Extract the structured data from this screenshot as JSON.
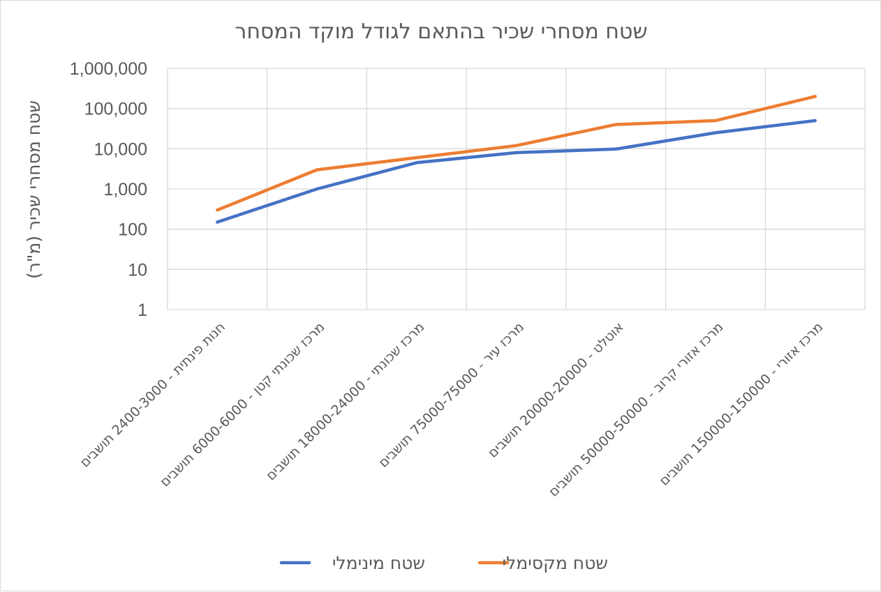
{
  "chart_data": {
    "type": "line",
    "title": "שטח מסחרי שכיר בהתאם לגודל מוקד המסחר",
    "xlabel": "",
    "ylabel": "שטח מסחרי שכיר (מ\"ר)",
    "yscale": "log",
    "ylim": [
      1,
      1000000
    ],
    "y_ticks": [
      "1",
      "10",
      "100",
      "1,000",
      "10,000",
      "100,000",
      "1,000,000"
    ],
    "grid": true,
    "legend_position": "bottom",
    "categories": [
      "חנות פינתית - 2400-3000 תושבים",
      "מרכז שכונתי קטן - 6000-6000 תושבים",
      "מרכז שכונתי - 18000-24000 תושבים",
      "מרכז עיר - 75000-75000 תושבים",
      "אוטלט - 20000-20000 תושבים",
      "מרכז אזורי קרוב - 50000-50000 תושבים",
      "מרכז אזורי - 150000-150000 תושבים"
    ],
    "series": [
      {
        "name": "שטח מינימלי",
        "color": "#4472c4",
        "values": [
          150,
          1000,
          4500,
          8000,
          9800,
          25000,
          50000
        ]
      },
      {
        "name": "שטח מקסימלי",
        "color": "#ed7d31",
        "values": [
          300,
          3000,
          6000,
          12000,
          40000,
          50000,
          200000
        ]
      }
    ]
  }
}
